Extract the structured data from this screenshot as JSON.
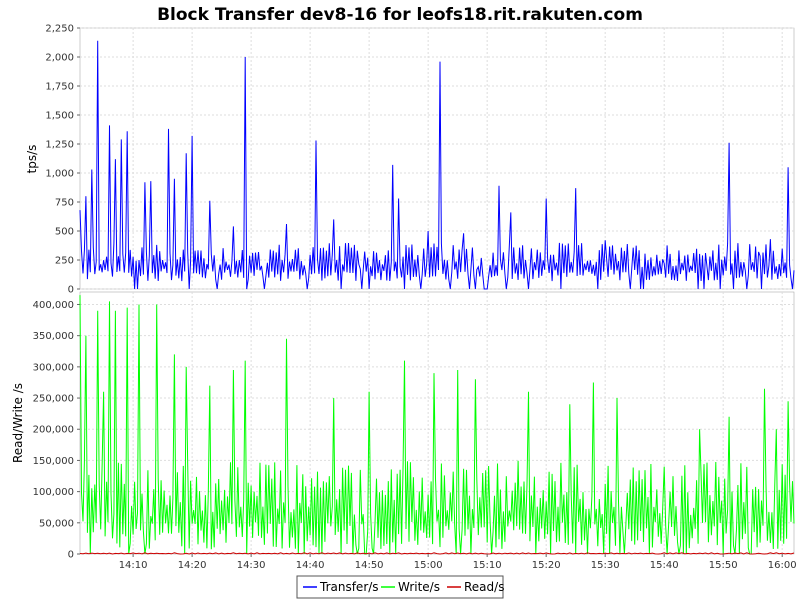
{
  "chart_data": {
    "type": "line",
    "title": "Block Transfer dev8-16 for leofs18.rit.rakuten.com",
    "x": {
      "ticks": [
        "14:10",
        "14:20",
        "14:30",
        "14:40",
        "14:50",
        "15:00",
        "15:10",
        "15:20",
        "15:30",
        "15:40",
        "15:50",
        "16:00"
      ],
      "start": "14:01",
      "end": "16:02",
      "grid": true
    },
    "panels": [
      {
        "ylabel": "tps/s",
        "ylim": [
          0,
          2250
        ],
        "yticks": [
          "0",
          "250",
          "500",
          "750",
          "1,000",
          "1,250",
          "1,500",
          "1,750",
          "2,000",
          "2,250"
        ],
        "grid": true,
        "series": [
          {
            "name": "Transfer/s",
            "color": "#0000ff",
            "peaks": [
              {
                "t": "14:01",
                "v": 680
              },
              {
                "t": "14:02",
                "v": 800
              },
              {
                "t": "14:03",
                "v": 1030
              },
              {
                "t": "14:04",
                "v": 2140
              },
              {
                "t": "14:06",
                "v": 1410
              },
              {
                "t": "14:07",
                "v": 1120
              },
              {
                "t": "14:08",
                "v": 1290
              },
              {
                "t": "14:09",
                "v": 1360
              },
              {
                "t": "14:12",
                "v": 920
              },
              {
                "t": "14:13",
                "v": 930
              },
              {
                "t": "14:16",
                "v": 1380
              },
              {
                "t": "14:17",
                "v": 950
              },
              {
                "t": "14:19",
                "v": 1170
              },
              {
                "t": "14:20",
                "v": 1320
              },
              {
                "t": "14:23",
                "v": 760
              },
              {
                "t": "14:27",
                "v": 540
              },
              {
                "t": "14:29",
                "v": 2000
              },
              {
                "t": "14:36",
                "v": 560
              },
              {
                "t": "14:41",
                "v": 1280
              },
              {
                "t": "14:44",
                "v": 600
              },
              {
                "t": "14:48",
                "v": 330
              },
              {
                "t": "14:54",
                "v": 1070
              },
              {
                "t": "14:55",
                "v": 780
              },
              {
                "t": "15:00",
                "v": 500
              },
              {
                "t": "15:02",
                "v": 1960
              },
              {
                "t": "15:06",
                "v": 480
              },
              {
                "t": "15:12",
                "v": 890
              },
              {
                "t": "15:14",
                "v": 660
              },
              {
                "t": "15:20",
                "v": 780
              },
              {
                "t": "15:25",
                "v": 870
              },
              {
                "t": "15:30",
                "v": 420
              },
              {
                "t": "15:40",
                "v": 220
              },
              {
                "t": "15:47",
                "v": 310
              },
              {
                "t": "15:51",
                "v": 1260
              },
              {
                "t": "15:56",
                "v": 320
              },
              {
                "t": "15:58",
                "v": 430
              },
              {
                "t": "16:01",
                "v": 1050
              }
            ],
            "baseline_range": [
              50,
              400
            ]
          }
        ]
      },
      {
        "ylabel": "Read/Write /s",
        "ylim": [
          0,
          420000
        ],
        "yticks": [
          "0",
          "50,000",
          "100,000",
          "150,000",
          "200,000",
          "250,000",
          "300,000",
          "350,000",
          "400,000"
        ],
        "grid": true,
        "series": [
          {
            "name": "Write/s",
            "color": "#00ff00",
            "peaks": [
              {
                "t": "14:01",
                "v": 415000
              },
              {
                "t": "14:02",
                "v": 350000
              },
              {
                "t": "14:04",
                "v": 390000
              },
              {
                "t": "14:05",
                "v": 260000
              },
              {
                "t": "14:06",
                "v": 405000
              },
              {
                "t": "14:07",
                "v": 390000
              },
              {
                "t": "14:09",
                "v": 395000
              },
              {
                "t": "14:11",
                "v": 400000
              },
              {
                "t": "14:14",
                "v": 400000
              },
              {
                "t": "14:17",
                "v": 320000
              },
              {
                "t": "14:19",
                "v": 300000
              },
              {
                "t": "14:23",
                "v": 270000
              },
              {
                "t": "14:27",
                "v": 295000
              },
              {
                "t": "14:29",
                "v": 310000
              },
              {
                "t": "14:36",
                "v": 345000
              },
              {
                "t": "14:44",
                "v": 250000
              },
              {
                "t": "14:50",
                "v": 260000
              },
              {
                "t": "14:56",
                "v": 310000
              },
              {
                "t": "15:01",
                "v": 290000
              },
              {
                "t": "15:05",
                "v": 295000
              },
              {
                "t": "15:08",
                "v": 280000
              },
              {
                "t": "15:17",
                "v": 260000
              },
              {
                "t": "15:24",
                "v": 240000
              },
              {
                "t": "15:28",
                "v": 275000
              },
              {
                "t": "15:32",
                "v": 250000
              },
              {
                "t": "15:40",
                "v": 140000
              },
              {
                "t": "15:46",
                "v": 200000
              },
              {
                "t": "15:51",
                "v": 220000
              },
              {
                "t": "15:57",
                "v": 265000
              },
              {
                "t": "15:59",
                "v": 200000
              },
              {
                "t": "16:01",
                "v": 245000
              }
            ],
            "baseline_range": [
              0,
              150000
            ]
          },
          {
            "name": "Read/s",
            "color": "#cc0000",
            "peaks": [],
            "baseline_range": [
              0,
              2000
            ]
          }
        ]
      }
    ],
    "legend": {
      "position": "bottom-center",
      "entries": [
        {
          "label": "Transfer/s",
          "color": "#0000ff"
        },
        {
          "label": "Write/s",
          "color": "#00ff00"
        },
        {
          "label": "Read/s",
          "color": "#cc0000"
        }
      ]
    }
  }
}
